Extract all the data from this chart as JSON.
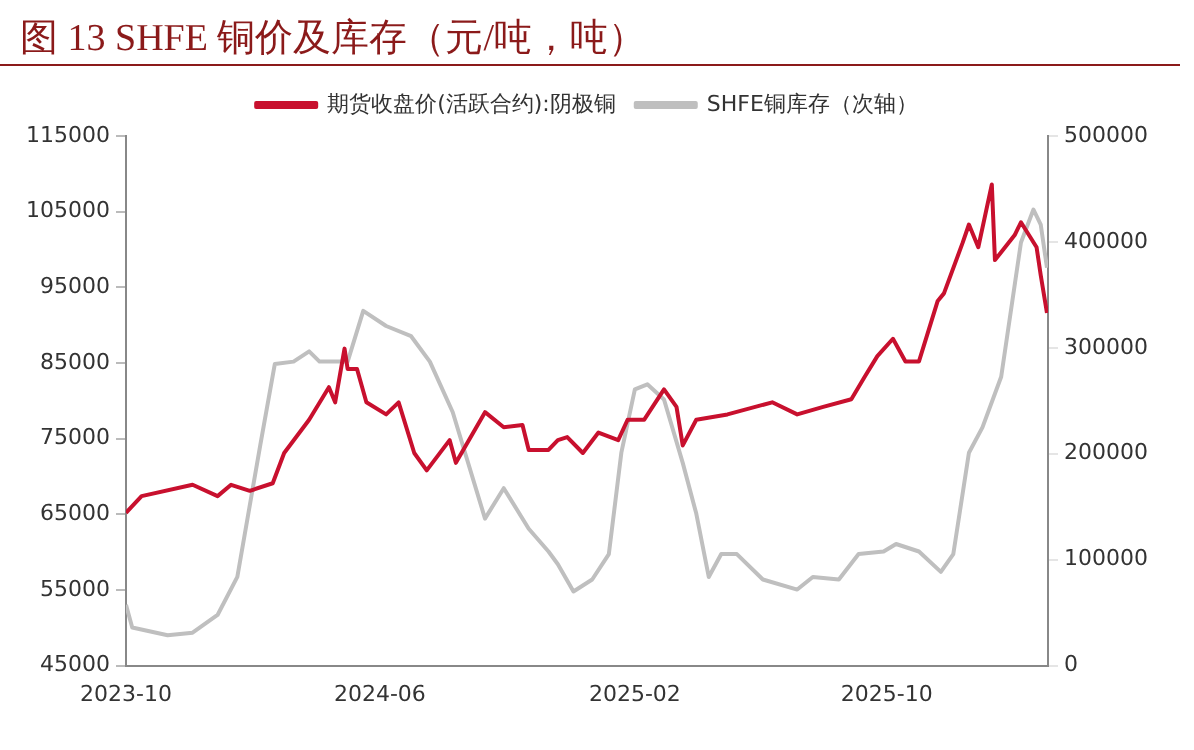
{
  "chart_data": {
    "type": "line",
    "title": "图 13 SHFE 铜价及库存（元/吨，吨）",
    "legend": "top",
    "grid": false,
    "marker": "none",
    "line_style": "solid",
    "xlim": [
      "2023-10-01",
      "2026-03-05"
    ],
    "xticks": [
      {
        "value": "2023-10-01",
        "label": "2023-10"
      },
      {
        "value": "2024-06-01",
        "label": "2024-06"
      },
      {
        "value": "2025-02-01",
        "label": "2025-02"
      },
      {
        "value": "2025-10-01",
        "label": "2025-10"
      }
    ],
    "ylim": [
      45000,
      115000
    ],
    "yticks": [
      45000,
      55000,
      65000,
      75000,
      85000,
      95000,
      105000,
      115000
    ],
    "y2lim": [
      0,
      500000
    ],
    "y2ticks": [
      0,
      100000,
      200000,
      300000,
      400000,
      500000
    ],
    "series": [
      {
        "name": "期货收盘价(活跃合约):阴极铜",
        "color": "#c8102e",
        "x": [
          "2023-10-01",
          "2023-10-16",
          "2023-12-04",
          "2023-12-28",
          "2024-01-10",
          "2024-01-28",
          "2024-02-19",
          "2024-03-01",
          "2024-03-25",
          "2024-04-13",
          "2024-04-19",
          "2024-04-28",
          "2024-05-01",
          "2024-05-10",
          "2024-05-19",
          "2024-06-07",
          "2024-06-19",
          "2024-07-04",
          "2024-07-16",
          "2024-08-07",
          "2024-08-13",
          "2024-09-10",
          "2024-09-28",
          "2024-10-16",
          "2024-10-22",
          "2024-11-10",
          "2024-11-19",
          "2024-11-28",
          "2024-12-13",
          "2024-12-28",
          "2025-01-16",
          "2025-01-25",
          "2025-02-10",
          "2025-03-01",
          "2025-03-13",
          "2025-03-19",
          "2025-04-01",
          "2025-05-01",
          "2025-06-13",
          "2025-07-07",
          "2025-08-01",
          "2025-08-28",
          "2025-09-10",
          "2025-09-22",
          "2025-10-07",
          "2025-10-19",
          "2025-11-01",
          "2025-11-19",
          "2025-11-25",
          "2025-12-13",
          "2025-12-19",
          "2025-12-28",
          "2026-01-10",
          "2026-01-13",
          "2026-02-01",
          "2026-02-07",
          "2026-02-22",
          "2026-02-26",
          "2026-03-04"
        ],
        "values": [
          65200,
          67400,
          68900,
          67400,
          68900,
          68100,
          69100,
          73100,
          77500,
          81800,
          79800,
          86900,
          84200,
          84200,
          79800,
          78200,
          79800,
          73100,
          70800,
          74800,
          71800,
          78500,
          76500,
          76800,
          73500,
          73500,
          74800,
          75200,
          73100,
          75800,
          74800,
          77500,
          77500,
          81500,
          79200,
          74100,
          77500,
          78200,
          79800,
          78200,
          79200,
          80200,
          83200,
          85900,
          88200,
          85200,
          85200,
          93200,
          94200,
          100900,
          103300,
          100300,
          108600,
          98600,
          101900,
          103600,
          100300,
          96600,
          91600
        ]
      },
      {
        "name": "SHFE铜库存（次轴）",
        "color": "#bfbfbf",
        "axis": "y2",
        "x": [
          "2023-10-01",
          "2023-10-07",
          "2023-11-10",
          "2023-12-04",
          "2023-12-28",
          "2024-01-16",
          "2024-02-07",
          "2024-02-21",
          "2024-03-10",
          "2024-03-25",
          "2024-04-04",
          "2024-05-01",
          "2024-05-16",
          "2024-06-07",
          "2024-07-01",
          "2024-07-19",
          "2024-08-10",
          "2024-09-10",
          "2024-09-28",
          "2024-10-22",
          "2024-11-10",
          "2024-11-19",
          "2024-12-04",
          "2024-12-22",
          "2025-01-07",
          "2025-01-19",
          "2025-02-01",
          "2025-02-13",
          "2025-03-01",
          "2025-03-19",
          "2025-04-01",
          "2025-04-13",
          "2025-04-25",
          "2025-05-10",
          "2025-06-04",
          "2025-07-07",
          "2025-07-22",
          "2025-08-16",
          "2025-09-04",
          "2025-09-28",
          "2025-10-10",
          "2025-11-01",
          "2025-11-22",
          "2025-12-04",
          "2025-12-19",
          "2026-01-01",
          "2026-01-19",
          "2026-02-07",
          "2026-02-19",
          "2026-02-26",
          "2026-03-04"
        ],
        "values": [
          57400,
          36000,
          28700,
          31100,
          47800,
          83700,
          208000,
          284700,
          287000,
          296700,
          287000,
          287000,
          334900,
          320600,
          311000,
          287000,
          239200,
          138800,
          167500,
          129200,
          107700,
          95700,
          70000,
          81300,
          105300,
          201000,
          260800,
          265600,
          251200,
          191400,
          143500,
          83700,
          105300,
          105300,
          81300,
          71800,
          83700,
          81300,
          105300,
          107700,
          114800,
          107700,
          88500,
          105300,
          201000,
          224900,
          272700,
          399500,
          430600,
          416300,
          375600
        ]
      }
    ]
  }
}
